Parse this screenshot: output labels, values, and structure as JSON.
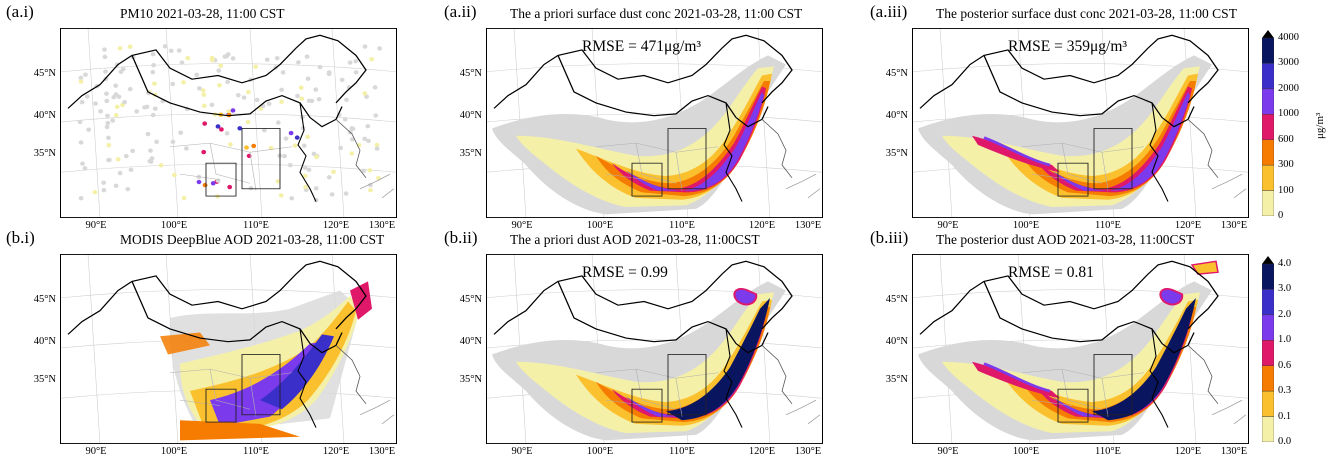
{
  "figure": {
    "panels": [
      {
        "id": "a-i",
        "letter": "(a.i)",
        "title": "PM10 2021-03-28, 11:00 CST",
        "rmse": "",
        "kind": "stations"
      },
      {
        "id": "a-ii",
        "letter": "(a.ii)",
        "title": "The  a priori surface dust conc 2021-03-28, 11:00 CST",
        "rmse": "RMSE = 471μg/m³",
        "kind": "plume-prior"
      },
      {
        "id": "a-iii",
        "letter": "(a.iii)",
        "title": "The  posterior surface dust conc 2021-03-28, 11:00 CST",
        "rmse": "RMSE = 359μg/m³",
        "kind": "plume-post"
      },
      {
        "id": "b-i",
        "letter": "(b.i)",
        "title": "MODIS DeepBlue AOD 2021-03-28, 11:00 CST",
        "rmse": "",
        "kind": "modis"
      },
      {
        "id": "b-ii",
        "letter": "(b.ii)",
        "title": "The  a priori dust AOD 2021-03-28, 11:00CST",
        "rmse": "RMSE = 0.99",
        "kind": "aod-prior"
      },
      {
        "id": "b-iii",
        "letter": "(b.iii)",
        "title": "The  posterior dust AOD 2021-03-28, 11:00CST",
        "rmse": "RMSE = 0.81",
        "kind": "aod-post"
      }
    ],
    "lat_labels": [
      "45°N",
      "40°N",
      "35°N"
    ],
    "lon_labels": [
      "90°E",
      "100°E",
      "110°E",
      "120°E",
      "130°E"
    ],
    "colorbars": [
      {
        "id": "conc",
        "unit": "μg/m³",
        "ticks": [
          "4000",
          "3000",
          "2000",
          "1000",
          "600",
          "300",
          "100",
          "0"
        ]
      },
      {
        "id": "aod",
        "unit": "",
        "ticks": [
          "4.0",
          "3.0",
          "2.0",
          "1.0",
          "0.6",
          "0.3",
          "0.1",
          "0.0"
        ]
      }
    ],
    "palette": [
      "#d8d8d8",
      "#f5f0a8",
      "#fbc02d",
      "#f57c00",
      "#e0186a",
      "#7c3aed",
      "#3b2fc9",
      "#0a1560"
    ]
  }
}
